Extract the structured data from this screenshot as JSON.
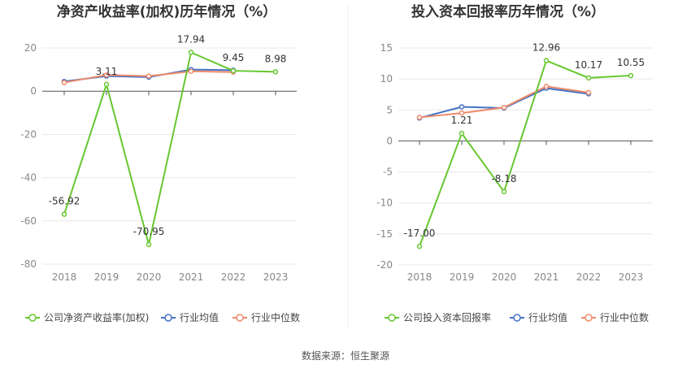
{
  "source_text": "数据来源：恒生聚源",
  "colors": {
    "company": "#66c730",
    "avg": "#4472c4",
    "median": "#ee8a6a",
    "grid": "#e8e8e8",
    "axis": "#555555",
    "tick": "#888888",
    "title": "#333333"
  },
  "chart_data": [
    {
      "type": "line",
      "title": "净资产收益率(加权)历年情况（%）",
      "categories": [
        "2018",
        "2019",
        "2020",
        "2021",
        "2022",
        "2023"
      ],
      "ylim": [
        -80,
        20
      ],
      "yticks": [
        20,
        0,
        -20,
        -40,
        -60,
        -80
      ],
      "grid": true,
      "legend_position": "bottom",
      "series": [
        {
          "name": "公司净资产收益率(加权)",
          "role": "company",
          "values": [
            -56.92,
            3.11,
            -70.95,
            17.94,
            9.45,
            8.98
          ],
          "labels": [
            "-56.92",
            "3.11",
            "-70.95",
            "17.94",
            "9.45",
            "8.98"
          ]
        },
        {
          "name": "行业均值",
          "role": "avg",
          "values": [
            4.5,
            7.0,
            6.5,
            10.0,
            9.7,
            null
          ]
        },
        {
          "name": "行业中位数",
          "role": "median",
          "values": [
            4.0,
            7.5,
            7.0,
            9.2,
            8.8,
            null
          ]
        }
      ]
    },
    {
      "type": "line",
      "title": "投入资本回报率历年情况（%）",
      "categories": [
        "2018",
        "2019",
        "2020",
        "2021",
        "2022",
        "2023"
      ],
      "ylim": [
        -20,
        15
      ],
      "yticks": [
        15,
        10,
        5,
        0,
        -5,
        -10,
        -15,
        -20
      ],
      "grid": true,
      "legend_position": "bottom",
      "series": [
        {
          "name": "公司投入资本回报率",
          "role": "company",
          "values": [
            -17.0,
            1.21,
            -8.18,
            12.96,
            10.17,
            10.55
          ],
          "labels": [
            "-17.00",
            "1.21",
            "-8.18",
            "12.96",
            "10.17",
            "10.55"
          ]
        },
        {
          "name": "行业均值",
          "role": "avg",
          "values": [
            3.7,
            5.5,
            5.3,
            8.5,
            7.6,
            null
          ]
        },
        {
          "name": "行业中位数",
          "role": "median",
          "values": [
            3.8,
            4.5,
            5.4,
            8.8,
            7.8,
            null
          ]
        }
      ]
    }
  ]
}
